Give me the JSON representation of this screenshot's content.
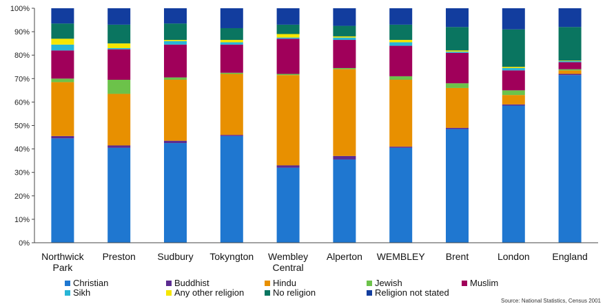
{
  "chart_data": {
    "type": "bar",
    "stacked": true,
    "ylim": [
      0,
      100
    ],
    "yticks": [
      "0%",
      "10%",
      "20%",
      "30%",
      "40%",
      "50%",
      "60%",
      "70%",
      "80%",
      "90%",
      "100%"
    ],
    "categories": [
      [
        "Northwick",
        "Park"
      ],
      [
        "Preston"
      ],
      [
        "Sudbury"
      ],
      [
        "Tokyngton"
      ],
      [
        "Wembley",
        "Central"
      ],
      [
        "Alperton"
      ],
      [
        "WEMBLEY"
      ],
      [
        "Brent"
      ],
      [
        "London"
      ],
      [
        "England"
      ]
    ],
    "series": [
      {
        "name": "Christian",
        "color": "#1f77d0",
        "values": [
          44.5,
          40.5,
          42.5,
          45.5,
          32,
          35.5,
          40.5,
          48.5,
          58.5,
          71.5
        ]
      },
      {
        "name": "Buddhist",
        "color": "#5b2c91",
        "values": [
          1,
          1,
          1,
          0.5,
          1,
          1.5,
          0.5,
          0.5,
          0.5,
          0.5
        ]
      },
      {
        "name": "Hindu",
        "color": "#e89000",
        "values": [
          23,
          22,
          26,
          26,
          38.5,
          37,
          28.5,
          17,
          4,
          1.5
        ]
      },
      {
        "name": "Jewish",
        "color": "#6cc24a",
        "values": [
          1.5,
          6,
          1,
          0.5,
          0.5,
          0.5,
          1.5,
          2,
          2,
          0.5
        ]
      },
      {
        "name": "Muslim",
        "color": "#a0005a",
        "values": [
          12,
          13,
          14,
          12,
          15,
          12,
          13,
          13,
          8.5,
          3
        ]
      },
      {
        "name": "Sikh",
        "color": "#27b5d6",
        "values": [
          2.5,
          0.5,
          1.5,
          1,
          0.5,
          1,
          1.5,
          0.5,
          1,
          0.5
        ]
      },
      {
        "name": "Any other religion",
        "color": "#f5e600",
        "values": [
          2.5,
          2,
          0.5,
          1,
          1.5,
          0.5,
          1,
          0.5,
          0.5,
          0.2
        ]
      },
      {
        "name": "No religion",
        "color": "#0a7560",
        "values": [
          6.5,
          8,
          7,
          5,
          4,
          4.5,
          6.5,
          10,
          16,
          14.3
        ]
      },
      {
        "name": "Religion not stated",
        "color": "#123d9e",
        "values": [
          6.5,
          7,
          6.5,
          8.5,
          7,
          7.5,
          7,
          8,
          9,
          8
        ]
      }
    ],
    "source": "Source: National Statistics, Census 2001",
    "grid": false,
    "legend_position": "bottom"
  }
}
